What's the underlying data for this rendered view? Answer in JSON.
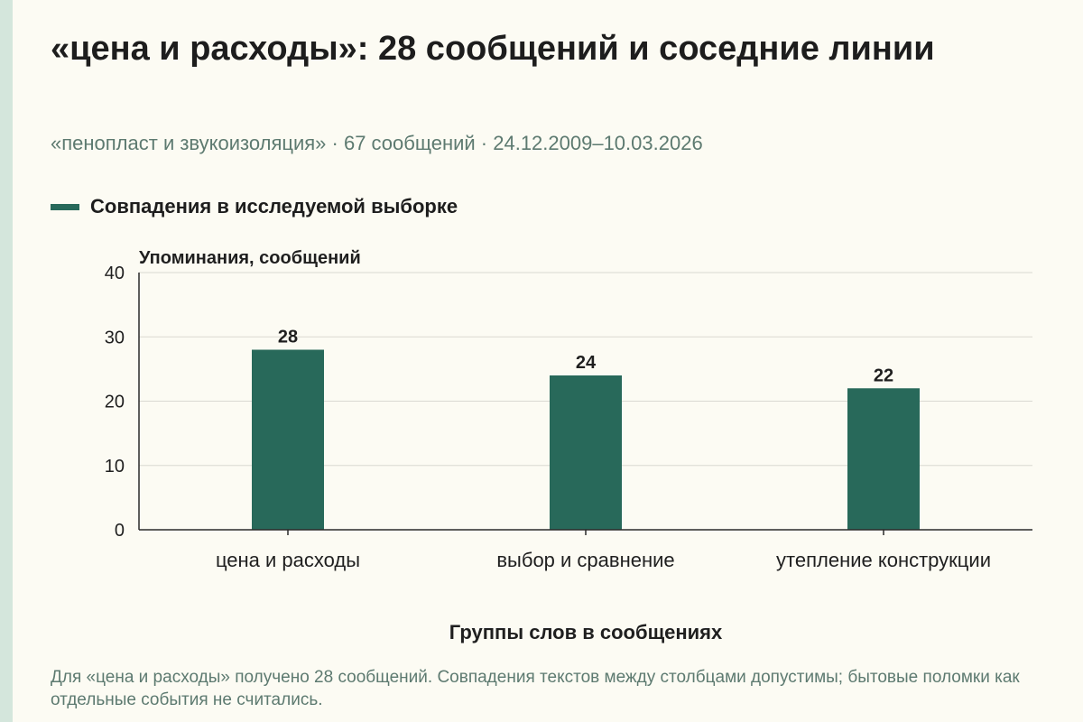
{
  "header": {
    "title": "«цена и расходы»: 28 сообщений и соседние линии",
    "subtitle": "«пенопласт и звукоизоляция» · 67 сообщений · 24.12.2009–10.03.2026"
  },
  "footnote": "Для «цена и расходы» получено 28 сообщений. Совпадения текстов между столбцами допустимы; бытовые поломки как отдельные события не считались.",
  "colors": {
    "bar": "#28695a",
    "grid": "#d9d9d2",
    "axis": "#2a2a2a",
    "background": "#fcfbf3"
  },
  "chart_data": {
    "type": "bar",
    "categories": [
      "цена и расходы",
      "выбор и сравнение",
      "утепление конструкции"
    ],
    "series": [
      {
        "name": "Совпадения в исследуемой выборке",
        "values": [
          28,
          24,
          22
        ]
      }
    ],
    "ylabel": "Упоминания, сообщений",
    "xlabel": "Группы слов в сообщениях",
    "ylim": [
      0,
      40
    ],
    "yticks": [
      0,
      10,
      20,
      30,
      40
    ],
    "grid": true,
    "legend_position": "top-left",
    "data_labels": true
  }
}
